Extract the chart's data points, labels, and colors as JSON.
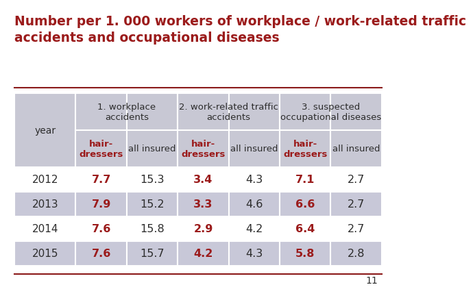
{
  "title": "Number per 1. 000 workers of workplace / work-related traffic\naccidents and occupational diseases",
  "title_color": "#8B1A1A",
  "background_color": "#FFFFFF",
  "table_bg_white": "#FFFFFF",
  "header_bg": "#C8C8D4",
  "red_color": "#9B1B1B",
  "black_color": "#2C2C2C",
  "col_groups": [
    {
      "label": "1. workplace\naccidents",
      "span": 2
    },
    {
      "label": "2. work-related traffic\naccidents",
      "span": 2
    },
    {
      "label": "3. suspected\noccupational diseases",
      "span": 2
    }
  ],
  "sub_headers": [
    "hair-\ndressers",
    "all insured",
    "hair-\ndressers",
    "all insured",
    "hair-\ndressers",
    "all insured"
  ],
  "sub_header_colors": [
    "red",
    "black",
    "red",
    "black",
    "red",
    "black"
  ],
  "years": [
    "2012",
    "2013",
    "2014",
    "2015"
  ],
  "data": [
    [
      7.7,
      15.3,
      3.4,
      4.3,
      7.1,
      2.7
    ],
    [
      7.9,
      15.2,
      3.3,
      4.6,
      6.6,
      2.7
    ],
    [
      7.6,
      15.8,
      2.9,
      4.2,
      6.4,
      2.7
    ],
    [
      7.6,
      15.7,
      4.2,
      4.3,
      5.8,
      2.8
    ]
  ],
  "data_colors": [
    [
      "red",
      "black",
      "red",
      "black",
      "red",
      "black"
    ],
    [
      "red",
      "black",
      "red",
      "black",
      "red",
      "black"
    ],
    [
      "red",
      "black",
      "red",
      "black",
      "red",
      "black"
    ],
    [
      "red",
      "black",
      "red",
      "black",
      "red",
      "black"
    ]
  ],
  "row_bg_colors": [
    "#FFFFFF",
    "#C8C8D8",
    "#FFFFFF",
    "#C8C8D8"
  ],
  "page_number": "11",
  "separator_color": "#8B1A1A"
}
